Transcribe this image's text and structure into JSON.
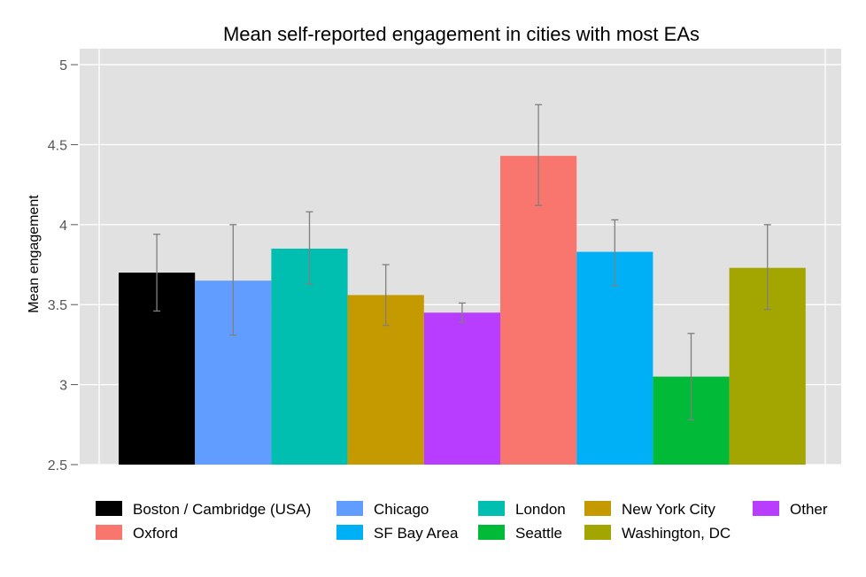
{
  "chart_data": {
    "type": "bar",
    "title": "Mean self-reported engagement in cities with most EAs",
    "xlabel": "",
    "ylabel": "Mean engagement",
    "ylim": [
      2.5,
      5.1
    ],
    "yticks": [
      2.5,
      3,
      3.5,
      4,
      4.5,
      5
    ],
    "ytick_labels": [
      "2.5",
      "3",
      "3.5",
      "4",
      "4.5",
      "5"
    ],
    "grid": true,
    "legend_position": "bottom",
    "categories": [
      "Boston / Cambridge (USA)",
      "Chicago",
      "London",
      "New York City",
      "Other",
      "Oxford",
      "SF Bay Area",
      "Seattle",
      "Washington, DC"
    ],
    "values": [
      3.7,
      3.65,
      3.85,
      3.56,
      3.45,
      4.43,
      3.83,
      3.05,
      3.73
    ],
    "error_low": [
      3.46,
      3.31,
      3.63,
      3.37,
      3.39,
      4.12,
      3.62,
      2.78,
      3.47
    ],
    "error_high": [
      3.94,
      4.0,
      4.08,
      3.75,
      3.51,
      4.75,
      4.03,
      3.32,
      4.0
    ],
    "colors": [
      "#000000",
      "#619CFF",
      "#00BFB0",
      "#C49A00",
      "#B83DFF",
      "#F8766D",
      "#00B0F6",
      "#00BA38",
      "#A3A500"
    ]
  }
}
